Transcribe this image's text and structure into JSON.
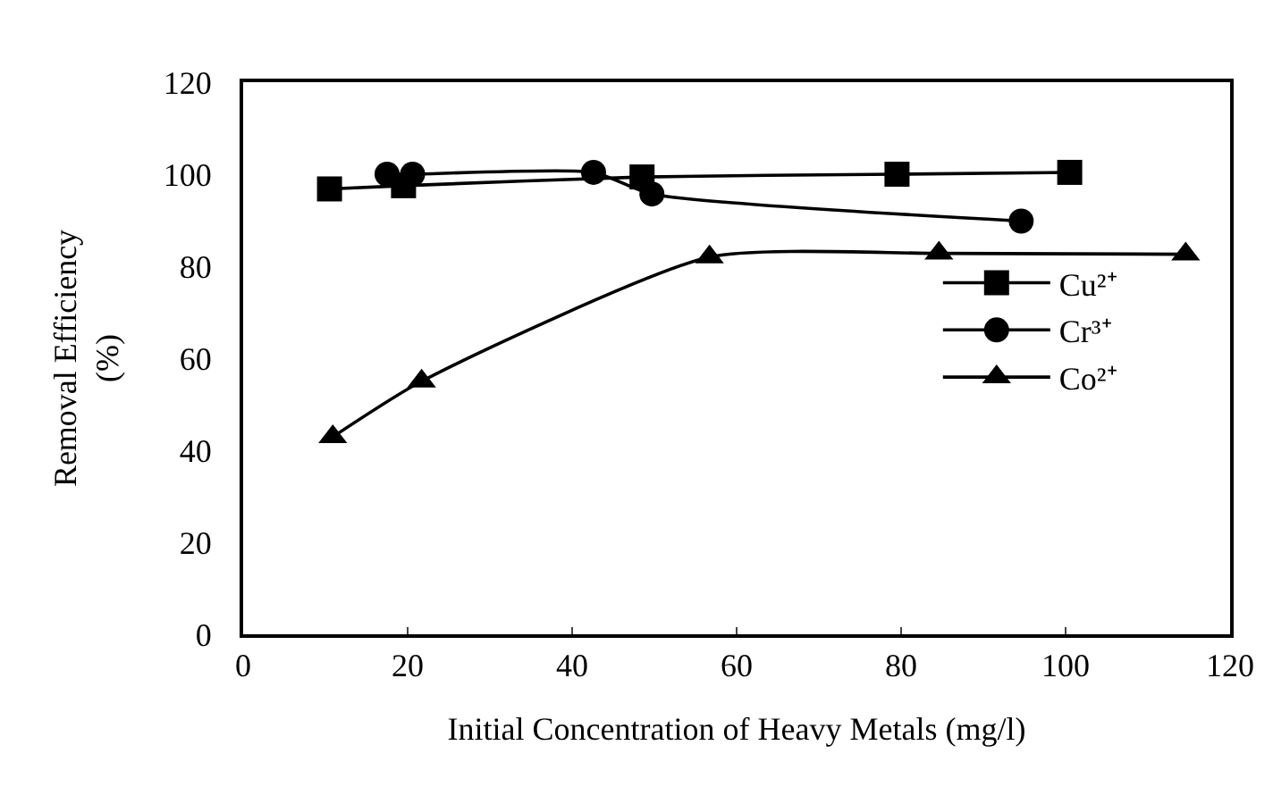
{
  "chart_data": {
    "type": "line",
    "xlabel": "Initial Concentration of Heavy Metals (mg/l)",
    "ylabel": "Removal Efficiency\n(%)",
    "xlim": [
      0,
      120
    ],
    "xticks": [
      0,
      20,
      40,
      60,
      80,
      100,
      120
    ],
    "ylim": [
      0,
      120
    ],
    "yticks": [
      0,
      20,
      40,
      60,
      80,
      100,
      120
    ],
    "grid": false,
    "legend": "right",
    "series": [
      {
        "name": "Cu²⁺",
        "color": "#000000",
        "marker": "square",
        "x": [
          10.5,
          19.5,
          48.5,
          79.5,
          100.5
        ],
        "values": [
          96.8,
          97.5,
          99.4,
          100,
          100.4
        ]
      },
      {
        "name": "Cr³⁺",
        "color": "#000000",
        "marker": "circle",
        "x": [
          17.5,
          20.6,
          42.6,
          49.7,
          94.6
        ],
        "values": [
          100,
          100,
          100.4,
          95.7,
          89.8
        ]
      },
      {
        "name": "Co²⁺",
        "color": "#000000",
        "marker": "triangle",
        "x": [
          10.9,
          21.7,
          56.7,
          84.6,
          114.6
        ],
        "values": [
          42.9,
          55,
          82,
          82.8,
          82.6
        ]
      }
    ]
  }
}
